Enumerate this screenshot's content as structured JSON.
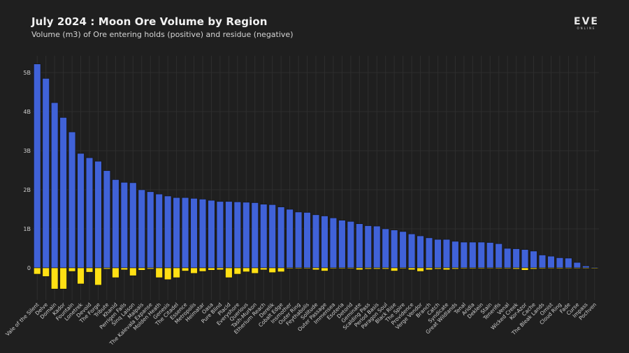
{
  "header": {
    "title": "July 2024 : Moon Ore Volume by Region",
    "subtitle": "Volume (m3) of Ore entering holds (positive) and residue (negative)",
    "logo_main": "EVE",
    "logo_sub": "ONLINE"
  },
  "colors": {
    "background": "#1f1f1f",
    "positive": "#4062d8",
    "negative": "#ffe014",
    "grid": "#2e2e2e"
  },
  "chart_data": {
    "type": "bar",
    "title": "July 2024 : Moon Ore Volume by Region",
    "subtitle": "Volume (m3) of Ore entering holds (positive) and residue (negative)",
    "xlabel": "",
    "ylabel": "",
    "ylim": [
      -0.6,
      5.2
    ],
    "yunit": "B",
    "yticks": [
      0,
      1,
      2,
      3,
      4,
      5
    ],
    "ytick_labels": [
      "0",
      "1B",
      "2B",
      "3B",
      "4B",
      "5B"
    ],
    "grid": true,
    "legend": "none",
    "categories": [
      "Vale of the Silent",
      "Delve",
      "Domain",
      "Kador",
      "Fountain",
      "Lonetrek",
      "Devoid",
      "The Forge",
      "Tribute",
      "Khanid",
      "Perrigen Falls",
      "Sinq Laison",
      "Malpais",
      "The Kalevala Expanse",
      "Molden Heath",
      "Genesis",
      "The Citadel",
      "Essence",
      "Metropolis",
      "Heimatar",
      "Oasa",
      "Pure Blind",
      "Placid",
      "Everyshore",
      "Querious",
      "Tash-Murkon",
      "Etherium Reach",
      "Derelik",
      "Cobalt Edge",
      "Insmother",
      "Outer Ring",
      "Feythabolis",
      "Solitude",
      "Outer Passage",
      "Immensea",
      "Esoteria",
      "Detorid",
      "Geminate",
      "Scalding Pass",
      "Period Basis",
      "Paragon Soul",
      "Black Rise",
      "The Spire",
      "Providence",
      "Verge Vendor",
      "Branch",
      "Catch",
      "Syndicate",
      "Great Wildlands",
      "Tenal",
      "Aridia",
      "Deklein",
      "Stain",
      "Tenerifis",
      "Venal",
      "Wicked Creek",
      "Kor-Azor",
      "Cache",
      "The Bleak Lands",
      "Omist",
      "Cloud Ring",
      "Fade",
      "Curse",
      "Impass",
      "Pochven"
    ],
    "series": [
      {
        "name": "Ore entering holds (positive)",
        "color": "#4062d8",
        "values": [
          5.22,
          4.85,
          4.23,
          3.85,
          3.48,
          2.93,
          2.82,
          2.73,
          2.49,
          2.26,
          2.19,
          2.18,
          2.0,
          1.95,
          1.89,
          1.84,
          1.8,
          1.8,
          1.78,
          1.76,
          1.73,
          1.7,
          1.7,
          1.69,
          1.68,
          1.67,
          1.63,
          1.62,
          1.56,
          1.5,
          1.43,
          1.42,
          1.36,
          1.33,
          1.28,
          1.22,
          1.19,
          1.13,
          1.08,
          1.07,
          1.0,
          0.97,
          0.93,
          0.87,
          0.82,
          0.77,
          0.73,
          0.73,
          0.68,
          0.66,
          0.66,
          0.66,
          0.65,
          0.62,
          0.5,
          0.49,
          0.47,
          0.43,
          0.33,
          0.3,
          0.26,
          0.25,
          0.14,
          0.05,
          0.02
        ]
      },
      {
        "name": "Residue (negative)",
        "color": "#ffe014",
        "values": [
          -0.16,
          -0.22,
          -0.54,
          -0.54,
          -0.09,
          -0.41,
          -0.11,
          -0.44,
          -0.03,
          -0.25,
          -0.05,
          -0.2,
          -0.06,
          -0.03,
          -0.25,
          -0.3,
          -0.25,
          -0.08,
          -0.14,
          -0.09,
          -0.06,
          -0.05,
          -0.25,
          -0.16,
          -0.1,
          -0.14,
          -0.05,
          -0.12,
          -0.1,
          -0.02,
          -0.02,
          -0.02,
          -0.05,
          -0.08,
          -0.02,
          -0.02,
          -0.02,
          -0.05,
          -0.03,
          -0.03,
          -0.03,
          -0.08,
          -0.02,
          -0.05,
          -0.09,
          -0.05,
          -0.03,
          -0.05,
          -0.03,
          -0.02,
          -0.02,
          -0.02,
          -0.01,
          -0.02,
          -0.02,
          -0.03,
          -0.06,
          -0.03,
          -0.02,
          -0.01,
          -0.02,
          -0.01,
          -0.01,
          -0.01,
          -0.01
        ]
      }
    ]
  }
}
